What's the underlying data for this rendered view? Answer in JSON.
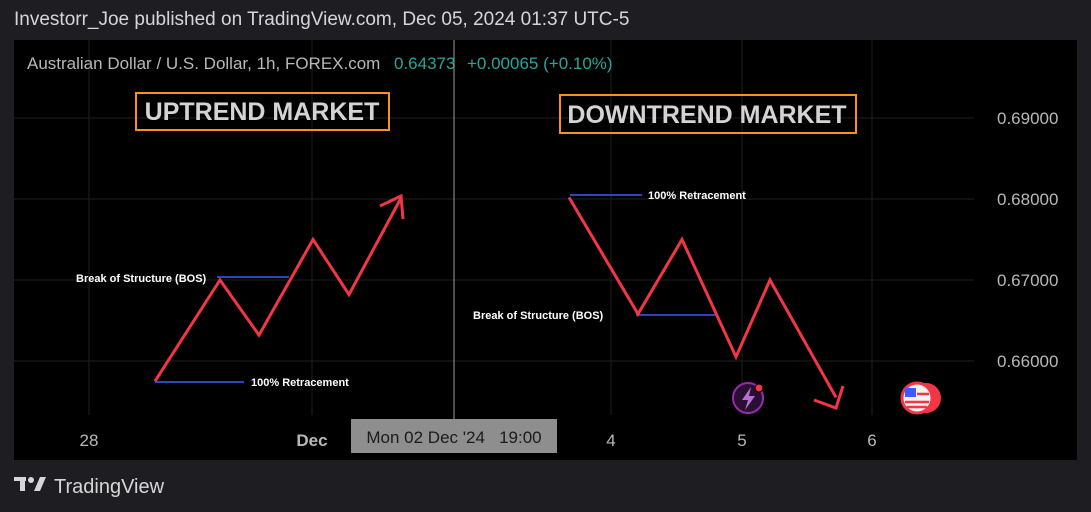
{
  "header": {
    "published_text": "Investorr_Joe published on TradingView.com, Dec 05, 2024 01:37 UTC-5"
  },
  "footer": {
    "brand_label": "TradingView"
  },
  "chart": {
    "symbol": "Australian Dollar / U.S. Dollar, 1h, FOREX.com",
    "price": "0.64373",
    "change": "+0.00065 (+0.10%)",
    "crosshair_label": "Mon 02 Dec '24   19:00",
    "uptrend_title": "UPTREND MARKET",
    "downtrend_title": "DOWNTREND MARKET",
    "labels": {
      "bos_left": "Break of Structure (BOS)",
      "retr_left": "100% Retracement",
      "retr_right": "100% Retracement",
      "bos_right": "Break of Structure (BOS)"
    }
  },
  "colors": {
    "background": "#000000",
    "grid": "#1f1f1f",
    "text": "#b8b8b8",
    "price_up": "#26a69a",
    "zigzag": "#f23645",
    "level_line": "#3d5afe",
    "title_border": "#f7931a",
    "crosshair": "#9a9a9a"
  },
  "chart_data": {
    "type": "line",
    "title": "Australian Dollar / U.S. Dollar, 1h, FOREX.com",
    "y_ticks": [
      "0.69000",
      "0.68000",
      "0.67000",
      "0.66000"
    ],
    "x_ticks": [
      "28",
      "Dec",
      "4",
      "5",
      "6"
    ],
    "ylim": [
      0.6544,
      0.6988
    ],
    "grid": true,
    "series": [
      {
        "x": [
          "Nov 28 17:00",
          "Nov 29 13:00",
          "Nov 29 20:00",
          "Dec 01 20:00",
          "Dec 02 07:00",
          "Dec 02 15:00"
        ],
        "values": [
          0.6575,
          0.67,
          0.6632,
          0.675,
          0.6682,
          0.6802
        ]
      },
      {
        "x": [
          "Dec 03 19:00",
          "Dec 04 04:00",
          "Dec 04 12:00",
          "Dec 04 22:00",
          "Dec 05 05:00",
          "Dec 05 19:00"
        ],
        "values": [
          0.6802,
          0.6658,
          0.675,
          0.6605,
          0.67,
          0.6555
        ]
      }
    ],
    "levels": [
      {
        "label": "Break of Structure (BOS)",
        "value": 0.6702
      },
      {
        "label": "100% Retracement",
        "value": 0.6575
      },
      {
        "label": "100% Retracement",
        "value": 0.6805
      },
      {
        "label": "Break of Structure (BOS)",
        "value": 0.6657
      }
    ]
  }
}
